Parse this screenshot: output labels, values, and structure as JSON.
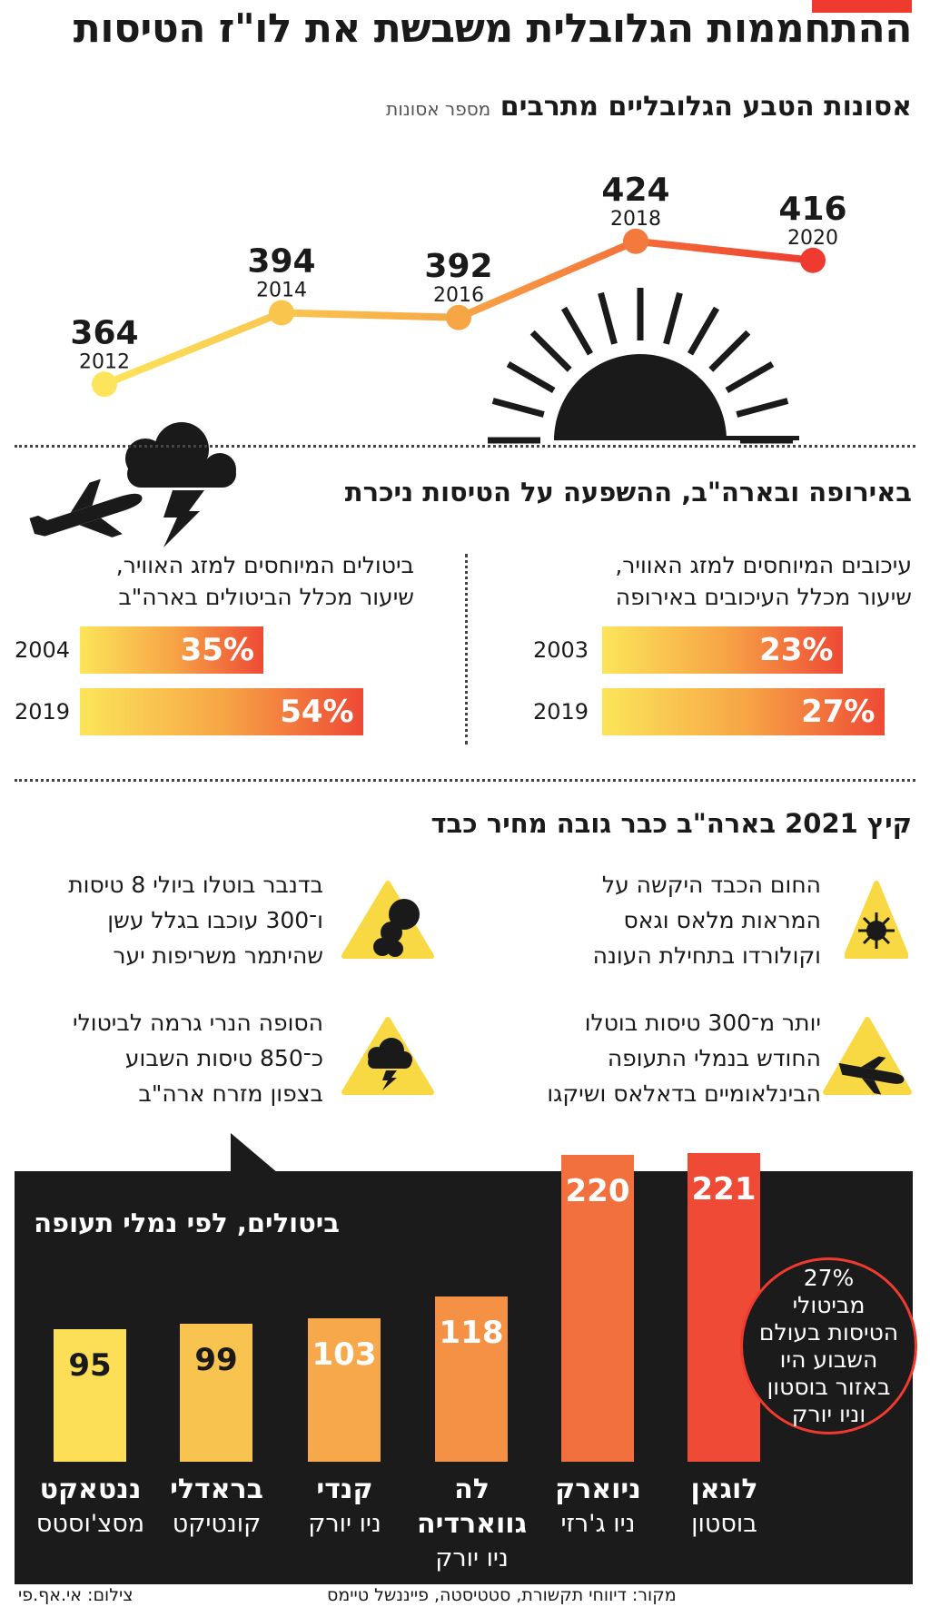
{
  "page": {
    "title": "ההתחממות הגלובלית משבשת את לו\"ז הטיסות"
  },
  "disasters": {
    "title": "אסונות הטבע הגלובליים מתרבים",
    "unit": "מספר אסונות"
  },
  "impact": {
    "title": "באירופה ובארה\"ב, ההשפעה על הטיסות ניכרת",
    "europe_heading": [
      "עיכובים המיוחסים למזג האוויר,",
      "שיעור מכלל העיכובים באירופה"
    ],
    "us_heading": [
      "ביטולים המיוחסים למזג האוויר,",
      "שיעור מכלל הביטולים בארה\"ב"
    ]
  },
  "summer": {
    "title": "קיץ 2021 בארה\"ב כבר גובה מחיר כבד",
    "items": [
      {
        "icon": "sun-icon",
        "lines": [
          "החום הכבד היקשה על",
          "המראות מלאס וגאס",
          "וקולורדו בתחילת העונה"
        ]
      },
      {
        "icon": "smoke-icon",
        "lines": [
          "בדנבר בוטלו ביולי 8 טיסות",
          "ו־300 עוכבו בגלל עשן",
          "שהיתמר משריפות יער"
        ]
      },
      {
        "icon": "airplane-icon",
        "lines": [
          "יותר מ־300 טיסות בוטלו",
          "החודש בנמלי התעופה",
          "הבינלאומיים בדאלאס ושיקגו"
        ]
      },
      {
        "icon": "storm-icon",
        "lines": [
          "הסופה הנרי גרמה לביטולי",
          "כ־850 טיסות השבוע",
          "בצפון מזרח ארה\"ב"
        ]
      }
    ]
  },
  "cancellations": {
    "title": "ביטולים, לפי נמלי תעופה",
    "callout": [
      "27%",
      "מביטולי",
      "הטיסות בעולם",
      "השבוע היו",
      "באזור בוסטון",
      "וניו יורק"
    ]
  },
  "footer": {
    "source": "מקור: דיווחי תקשורת, סטטיסטה, פייננשל טיימס",
    "photo": "צילום: אי.אף.פי"
  },
  "colors": {
    "accent": "#ee3a2f",
    "yellow": "#fce55a",
    "orange": "#f28a3f",
    "dark": "#1b1b1b"
  },
  "chart_data": [
    {
      "type": "line",
      "title": "אסונות הטבע הגלובליים מתרבים",
      "ylabel": "מספר אסונות",
      "x": [
        "2012",
        "2014",
        "2016",
        "2018",
        "2020"
      ],
      "series": [
        {
          "values": [
            364,
            394,
            392,
            424,
            416
          ]
        }
      ],
      "ylim": [
        350,
        430
      ]
    },
    {
      "type": "bar",
      "title": "עיכובים המיוחסים למזג האוויר, שיעור מכלל העיכובים באירופה",
      "categories": [
        "2003",
        "2019"
      ],
      "values": [
        23,
        27
      ],
      "labels": [
        "23%",
        "27%"
      ],
      "max": 100
    },
    {
      "type": "bar",
      "title": "ביטולים המיוחסים למזג האוויר, שיעור מכלל הביטולים בארה\"ב",
      "categories": [
        "2004",
        "2019"
      ],
      "values": [
        35,
        54
      ],
      "labels": [
        "35%",
        "54%"
      ],
      "max": 100
    },
    {
      "type": "bar",
      "title": "ביטולים, לפי נמלי תעופה",
      "categories": [
        "לוגאן",
        "ניוארק",
        "לה גווארדיה",
        "קנדי",
        "בראדלי",
        "ננטאקט"
      ],
      "cities": [
        "בוסטון",
        "ניו ג'רזי",
        "ניו יורק",
        "ניו יורק",
        "קונטיקט",
        "מסצ'וסטס"
      ],
      "values": [
        221,
        220,
        118,
        103,
        99,
        95
      ]
    }
  ]
}
